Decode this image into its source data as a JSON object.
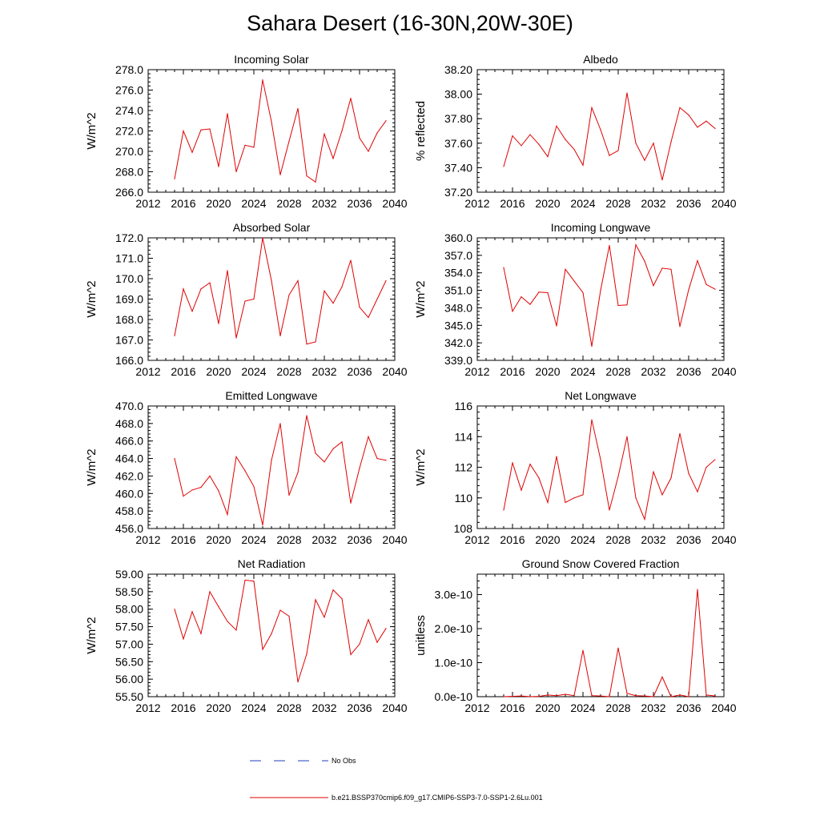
{
  "figure": {
    "title": "Sahara Desert (16-30N,20W-30E)"
  },
  "legend": {
    "entries": [
      {
        "label": "No Obs",
        "color": "#1f3fbf",
        "dashed": true
      },
      {
        "label": "b.e21.BSSP370cmip6.f09_g17.CMIP6-SSP3-7.0-SSP1-2.6Lu.001",
        "color": "#e00000",
        "dashed": false
      }
    ]
  },
  "colors": {
    "series": "#e00000",
    "axis": "#000000"
  },
  "chart_data": [
    {
      "type": "line",
      "title": "Incoming Solar",
      "ylabel": "W/m^2",
      "xlabel": "",
      "xlim": [
        2012,
        2040
      ],
      "ylim": [
        266,
        278
      ],
      "xticks": [
        "2012",
        "2016",
        "2020",
        "2024",
        "2028",
        "2032",
        "2036",
        "2040"
      ],
      "yticks": [
        "266.0",
        "268.0",
        "270.0",
        "272.0",
        "274.0",
        "276.0",
        "278.0"
      ],
      "x": [
        2015,
        2016,
        2017,
        2018,
        2019,
        2020,
        2021,
        2022,
        2023,
        2024,
        2025,
        2026,
        2027,
        2028,
        2029,
        2030,
        2031,
        2032,
        2033,
        2034,
        2035,
        2036,
        2037,
        2038,
        2039
      ],
      "series": [
        {
          "values": [
            267.3,
            272.0,
            269.9,
            272.1,
            272.2,
            268.5,
            273.7,
            268.0,
            270.6,
            270.4,
            277.0,
            272.9,
            267.7,
            271.0,
            274.2,
            267.6,
            267.0,
            271.7,
            269.3,
            272.0,
            275.2,
            271.3,
            270.0,
            271.8,
            273.0
          ]
        }
      ]
    },
    {
      "type": "line",
      "title": "Albedo",
      "ylabel": "% reflected",
      "xlabel": "",
      "xlim": [
        2012,
        2040
      ],
      "ylim": [
        37.2,
        38.2
      ],
      "xticks": [
        "2012",
        "2016",
        "2020",
        "2024",
        "2028",
        "2032",
        "2036",
        "2040"
      ],
      "yticks": [
        "37.20",
        "37.40",
        "37.60",
        "37.80",
        "38.00",
        "38.20"
      ],
      "x": [
        2015,
        2016,
        2017,
        2018,
        2019,
        2020,
        2021,
        2022,
        2023,
        2024,
        2025,
        2026,
        2027,
        2028,
        2029,
        2030,
        2031,
        2032,
        2033,
        2034,
        2035,
        2036,
        2037,
        2038,
        2039
      ],
      "series": [
        {
          "values": [
            37.41,
            37.66,
            37.58,
            37.67,
            37.59,
            37.49,
            37.74,
            37.63,
            37.55,
            37.42,
            37.89,
            37.71,
            37.5,
            37.54,
            38.01,
            37.6,
            37.46,
            37.6,
            37.3,
            37.61,
            37.89,
            37.83,
            37.73,
            37.78,
            37.72
          ]
        }
      ]
    },
    {
      "type": "line",
      "title": "Absorbed Solar",
      "ylabel": "W/m^2",
      "xlabel": "",
      "xlim": [
        2012,
        2040
      ],
      "ylim": [
        166,
        172
      ],
      "xticks": [
        "2012",
        "2016",
        "2020",
        "2024",
        "2028",
        "2032",
        "2036",
        "2040"
      ],
      "yticks": [
        "166.0",
        "167.0",
        "168.0",
        "169.0",
        "170.0",
        "171.0",
        "172.0"
      ],
      "x": [
        2015,
        2016,
        2017,
        2018,
        2019,
        2020,
        2021,
        2022,
        2023,
        2024,
        2025,
        2026,
        2027,
        2028,
        2029,
        2030,
        2031,
        2032,
        2033,
        2034,
        2035,
        2036,
        2037,
        2038,
        2039
      ],
      "series": [
        {
          "values": [
            167.2,
            169.5,
            168.4,
            169.5,
            169.8,
            167.8,
            170.4,
            167.1,
            168.9,
            169.0,
            172.0,
            169.9,
            167.2,
            169.2,
            169.9,
            166.8,
            166.9,
            169.4,
            168.8,
            169.6,
            170.9,
            168.6,
            168.1,
            169.0,
            169.9
          ]
        }
      ]
    },
    {
      "type": "line",
      "title": "Incoming Longwave",
      "ylabel": "W/m^2",
      "xlabel": "",
      "xlim": [
        2012,
        2040
      ],
      "ylim": [
        339,
        360
      ],
      "xticks": [
        "2012",
        "2016",
        "2020",
        "2024",
        "2028",
        "2032",
        "2036",
        "2040"
      ],
      "yticks": [
        "339.0",
        "342.0",
        "345.0",
        "348.0",
        "351.0",
        "354.0",
        "357.0",
        "360.0"
      ],
      "x": [
        2015,
        2016,
        2017,
        2018,
        2019,
        2020,
        2021,
        2022,
        2023,
        2024,
        2025,
        2026,
        2027,
        2028,
        2029,
        2030,
        2031,
        2032,
        2033,
        2034,
        2035,
        2036,
        2037,
        2038,
        2039
      ],
      "series": [
        {
          "values": [
            354.9,
            347.4,
            349.9,
            348.6,
            350.7,
            350.6,
            344.9,
            354.6,
            352.6,
            350.6,
            341.4,
            351.0,
            358.7,
            348.4,
            348.5,
            358.8,
            356.0,
            351.8,
            354.8,
            354.6,
            344.8,
            351.1,
            356.1,
            352.0,
            351.2
          ]
        }
      ]
    },
    {
      "type": "line",
      "title": "Emitted Longwave",
      "ylabel": "W/m^2",
      "xlabel": "",
      "xlim": [
        2012,
        2040
      ],
      "ylim": [
        456,
        470
      ],
      "xticks": [
        "2012",
        "2016",
        "2020",
        "2024",
        "2028",
        "2032",
        "2036",
        "2040"
      ],
      "yticks": [
        "456.0",
        "458.0",
        "460.0",
        "462.0",
        "464.0",
        "466.0",
        "468.0",
        "470.0"
      ],
      "x": [
        2015,
        2016,
        2017,
        2018,
        2019,
        2020,
        2021,
        2022,
        2023,
        2024,
        2025,
        2026,
        2027,
        2028,
        2029,
        2030,
        2031,
        2032,
        2033,
        2034,
        2035,
        2036,
        2037,
        2038,
        2039
      ],
      "series": [
        {
          "values": [
            464.0,
            459.7,
            460.4,
            460.7,
            462.0,
            460.3,
            457.6,
            464.2,
            462.6,
            460.8,
            456.4,
            463.8,
            468.0,
            459.8,
            462.4,
            468.9,
            464.6,
            463.6,
            465.1,
            465.9,
            458.9,
            462.9,
            466.5,
            464.0,
            463.8
          ]
        }
      ]
    },
    {
      "type": "line",
      "title": "Net Longwave",
      "ylabel": "W/m^2",
      "xlabel": "",
      "xlim": [
        2012,
        2040
      ],
      "ylim": [
        108,
        116
      ],
      "xticks": [
        "2012",
        "2016",
        "2020",
        "2024",
        "2028",
        "2032",
        "2036",
        "2040"
      ],
      "yticks": [
        "108",
        "110",
        "112",
        "114",
        "116"
      ],
      "x": [
        2015,
        2016,
        2017,
        2018,
        2019,
        2020,
        2021,
        2022,
        2023,
        2024,
        2025,
        2026,
        2027,
        2028,
        2029,
        2030,
        2031,
        2032,
        2033,
        2034,
        2035,
        2036,
        2037,
        2038,
        2039
      ],
      "series": [
        {
          "values": [
            109.2,
            112.3,
            110.5,
            112.2,
            111.3,
            109.7,
            112.7,
            109.7,
            110.0,
            110.2,
            115.1,
            112.5,
            109.2,
            111.4,
            114.0,
            110.0,
            108.6,
            111.7,
            110.2,
            111.3,
            114.2,
            111.6,
            110.4,
            112.0,
            112.5
          ]
        }
      ]
    },
    {
      "type": "line",
      "title": "Net Radiation",
      "ylabel": "W/m^2",
      "xlabel": "",
      "xlim": [
        2012,
        2040
      ],
      "ylim": [
        55.5,
        59
      ],
      "xticks": [
        "2012",
        "2016",
        "2020",
        "2024",
        "2028",
        "2032",
        "2036",
        "2040"
      ],
      "yticks": [
        "55.50",
        "56.00",
        "56.50",
        "57.00",
        "57.50",
        "58.00",
        "58.50",
        "59.00"
      ],
      "x": [
        2015,
        2016,
        2017,
        2018,
        2019,
        2020,
        2021,
        2022,
        2023,
        2024,
        2025,
        2026,
        2027,
        2028,
        2029,
        2030,
        2031,
        2032,
        2033,
        2034,
        2035,
        2036,
        2037,
        2038,
        2039
      ],
      "series": [
        {
          "values": [
            58.0,
            57.15,
            57.93,
            57.3,
            58.5,
            58.07,
            57.65,
            57.4,
            58.83,
            58.8,
            56.85,
            57.3,
            57.97,
            57.8,
            55.92,
            56.72,
            58.27,
            57.77,
            58.55,
            58.3,
            56.7,
            57.0,
            57.7,
            57.05,
            57.45
          ]
        }
      ]
    },
    {
      "type": "line",
      "title": "Ground Snow Covered Fraction",
      "ylabel": "unitless",
      "xlabel": "",
      "xlim": [
        2012,
        2040
      ],
      "ylim": [
        0,
        3.6e-10
      ],
      "xticks": [
        "2012",
        "2016",
        "2020",
        "2024",
        "2028",
        "2032",
        "2036",
        "2040"
      ],
      "yticks": [
        "0.0e-10",
        "1.0e-10",
        "2.0e-10",
        "3.0e-10"
      ],
      "x": [
        2015,
        2016,
        2017,
        2018,
        2019,
        2020,
        2021,
        2022,
        2023,
        2024,
        2025,
        2026,
        2027,
        2028,
        2029,
        2030,
        2031,
        2032,
        2033,
        2034,
        2035,
        2036,
        2037,
        2038,
        2039
      ],
      "series": [
        {
          "values": [
            0,
            1e-12,
            2e-12,
            0.0,
            1e-12,
            5e-12,
            3e-12,
            7e-12,
            3e-12,
            1.36e-10,
            3e-12,
            2e-12,
            0.0,
            1.43e-10,
            1e-11,
            3e-12,
            2e-12,
            0.0,
            5.8e-11,
            0.0,
            5e-12,
            0.0,
            3.15e-10,
            5e-12,
            2e-12
          ]
        }
      ]
    }
  ]
}
